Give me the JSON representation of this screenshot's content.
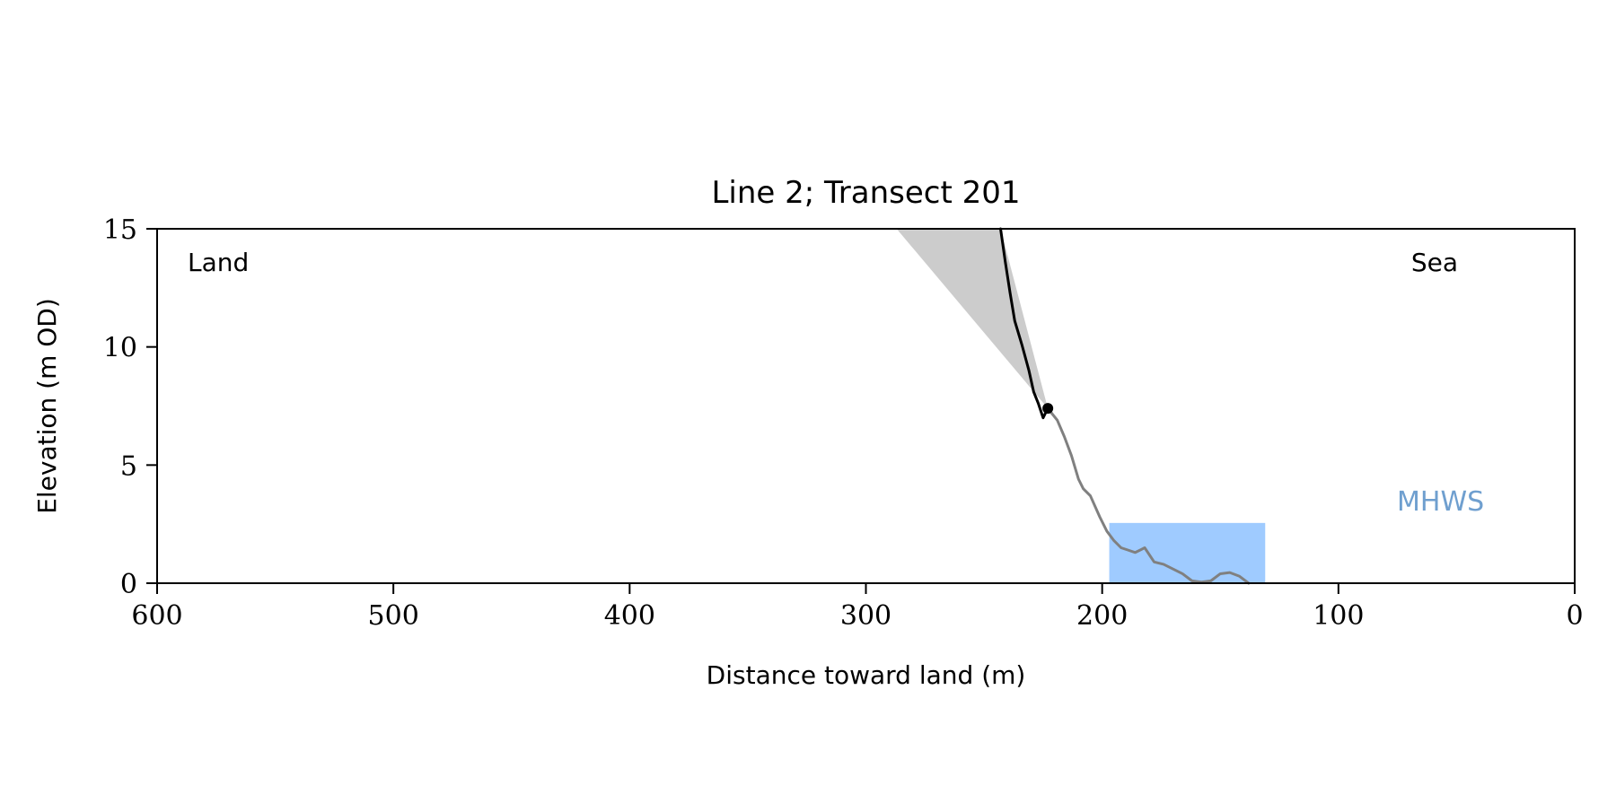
{
  "chart_data": {
    "type": "line",
    "title": "Line 2; Transect 201",
    "xlabel": "Distance toward land (m)",
    "ylabel": "Elevation (m OD)",
    "xlim": [
      600,
      0
    ],
    "ylim": [
      0,
      15
    ],
    "x_ticks": [
      "600",
      "500",
      "400",
      "300",
      "200",
      "100",
      "0"
    ],
    "y_ticks": [
      "0",
      "5",
      "10",
      "15"
    ],
    "grid": false,
    "annotations": {
      "land": "Land",
      "sea": "Sea",
      "mhws": "MHWS"
    },
    "colors": {
      "upper_profile": "#000000",
      "lower_profile": "#808080",
      "shaded_wedge": "#cccccc",
      "mhws_fill": "#9fcbff",
      "mhws_label": "#6f9fcf"
    },
    "upper_profile": {
      "x": [
        243,
        241,
        239,
        237,
        234,
        231,
        229,
        227,
        225,
        223
      ],
      "y": [
        15.0,
        13.6,
        12.3,
        11.1,
        10.1,
        9.0,
        8.1,
        7.6,
        7.0,
        7.4
      ]
    },
    "lower_profile": {
      "x": [
        223,
        219,
        216,
        213,
        210,
        208,
        205,
        201,
        198,
        195,
        192,
        189,
        186,
        182,
        178,
        174,
        170,
        166,
        162,
        158,
        154,
        150,
        146,
        142,
        138
      ],
      "y": [
        7.4,
        6.9,
        6.2,
        5.4,
        4.4,
        4.0,
        3.7,
        2.8,
        2.2,
        1.8,
        1.5,
        1.4,
        1.3,
        1.5,
        0.9,
        0.8,
        0.6,
        0.4,
        0.1,
        0.05,
        0.1,
        0.4,
        0.45,
        0.3,
        0.0
      ]
    },
    "marker": {
      "x": 223,
      "y": 7.4
    },
    "wedge": {
      "x": [
        287,
        243,
        223
      ],
      "y": [
        15,
        15,
        7.4
      ]
    },
    "mhws_region": {
      "x0": 197,
      "x1": 131,
      "y_top": 2.55
    }
  }
}
